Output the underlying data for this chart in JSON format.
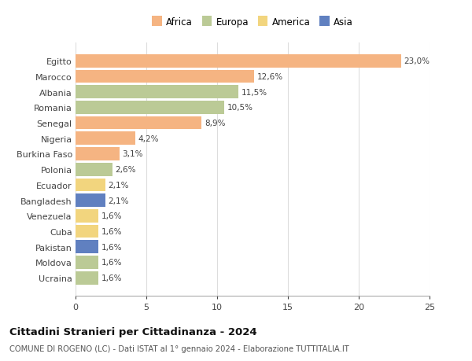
{
  "countries": [
    "Egitto",
    "Marocco",
    "Albania",
    "Romania",
    "Senegal",
    "Nigeria",
    "Burkina Faso",
    "Polonia",
    "Ecuador",
    "Bangladesh",
    "Venezuela",
    "Cuba",
    "Pakistan",
    "Moldova",
    "Ucraina"
  ],
  "values": [
    23.0,
    12.6,
    11.5,
    10.5,
    8.9,
    4.2,
    3.1,
    2.6,
    2.1,
    2.1,
    1.6,
    1.6,
    1.6,
    1.6,
    1.6
  ],
  "labels": [
    "23,0%",
    "12,6%",
    "11,5%",
    "10,5%",
    "8,9%",
    "4,2%",
    "3,1%",
    "2,6%",
    "2,1%",
    "2,1%",
    "1,6%",
    "1,6%",
    "1,6%",
    "1,6%",
    "1,6%"
  ],
  "continents": [
    "Africa",
    "Africa",
    "Europa",
    "Europa",
    "Africa",
    "Africa",
    "Africa",
    "Europa",
    "America",
    "Asia",
    "America",
    "America",
    "Asia",
    "Europa",
    "Europa"
  ],
  "continent_colors": {
    "Africa": "#F5B482",
    "Europa": "#BBCA96",
    "America": "#F2D57E",
    "Asia": "#6080C0"
  },
  "legend_items": [
    "Africa",
    "Europa",
    "America",
    "Asia"
  ],
  "legend_colors": [
    "#F5B482",
    "#BBCA96",
    "#F2D57E",
    "#6080C0"
  ],
  "xlim": [
    0,
    25
  ],
  "xticks": [
    0,
    5,
    10,
    15,
    20,
    25
  ],
  "title": "Cittadini Stranieri per Cittadinanza - 2024",
  "subtitle": "COMUNE DI ROGENO (LC) - Dati ISTAT al 1° gennaio 2024 - Elaborazione TUTTITALIA.IT",
  "bg_color": "#FFFFFF",
  "grid_color": "#DDDDDD",
  "bar_height": 0.85
}
